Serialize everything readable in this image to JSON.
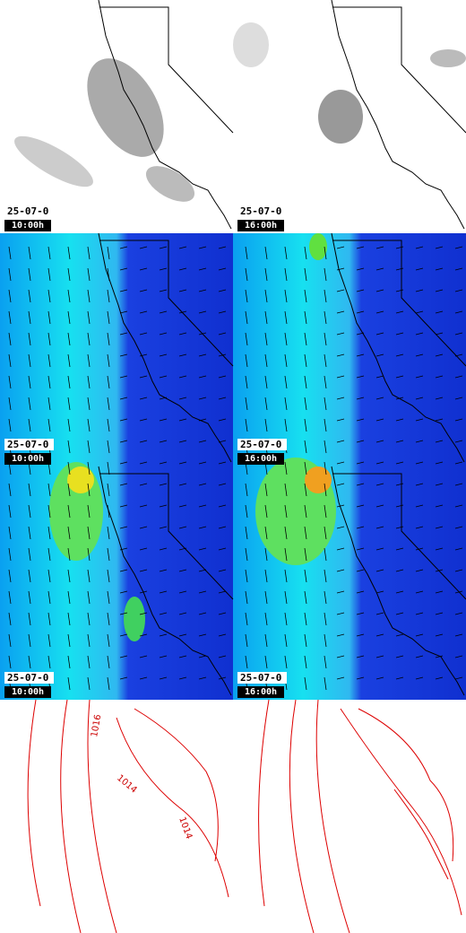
{
  "panels": [
    {
      "date": "25-07-0",
      "time": "10:00h"
    },
    {
      "date": "25-07-0",
      "time": "16:00h"
    },
    {
      "date": "25-07-0",
      "time": "10:00h"
    },
    {
      "date": "25-07-0",
      "time": "16:00h"
    },
    {
      "date": "25-07-0",
      "time": "10:00h"
    },
    {
      "date": "25-07-0",
      "time": "16:00h"
    }
  ],
  "isobar_labels": [
    "1016",
    "1014",
    "1014"
  ]
}
